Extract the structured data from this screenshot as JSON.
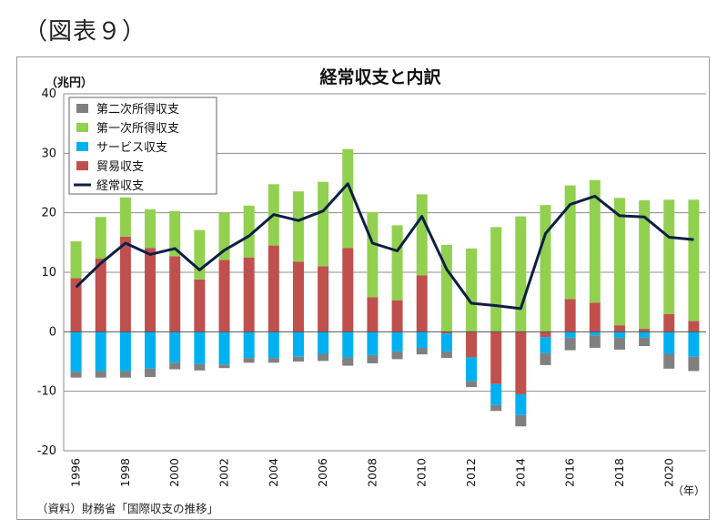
{
  "figure_label": "（図表９）",
  "source_note": "（資料）財務省「国際収支の推移」",
  "chart_data": {
    "type": "bar",
    "title": "経常収支と内訳",
    "y_unit_label": "（兆円）",
    "x_unit_label": "（年）",
    "ylim": [
      -20,
      40
    ],
    "yticks": [
      -20,
      -10,
      0,
      10,
      20,
      30,
      40
    ],
    "grid": true,
    "legend_position": "top-left",
    "categories": [
      "1996",
      "1997",
      "1998",
      "1999",
      "2000",
      "2001",
      "2002",
      "2003",
      "2004",
      "2005",
      "2006",
      "2007",
      "2008",
      "2009",
      "2010",
      "2011",
      "2012",
      "2013",
      "2014",
      "2015",
      "2016",
      "2017",
      "2018",
      "2019",
      "2020",
      "2021"
    ],
    "x_tick_labels": [
      "1996",
      "1998",
      "2000",
      "2002",
      "2004",
      "2006",
      "2008",
      "2010",
      "2012",
      "2014",
      "2016",
      "2018",
      "2020"
    ],
    "series": [
      {
        "name": "第二次所得収支",
        "kind": "bar",
        "color": "#808080",
        "values": [
          -1.0,
          -1.1,
          -1.1,
          -1.4,
          -1.1,
          -1.1,
          -0.6,
          -0.8,
          -0.8,
          -0.8,
          -1.2,
          -1.4,
          -1.4,
          -1.3,
          -1.1,
          -1.1,
          -1.0,
          -1.0,
          -1.9,
          -2.0,
          -2.1,
          -2.1,
          -2.0,
          -1.4,
          -2.5,
          -2.4
        ]
      },
      {
        "name": "第一次所得収支",
        "kind": "bar",
        "color": "#92d050",
        "values": [
          6.2,
          7.0,
          6.6,
          6.5,
          7.6,
          8.3,
          7.9,
          8.7,
          10.3,
          11.8,
          14.2,
          16.6,
          14.3,
          12.6,
          13.6,
          14.6,
          14.0,
          17.6,
          19.4,
          21.3,
          19.1,
          20.6,
          21.4,
          21.6,
          19.2,
          20.4
        ]
      },
      {
        "name": "サービス収支",
        "kind": "bar",
        "color": "#00b0f0",
        "values": [
          -6.7,
          -6.6,
          -6.6,
          -6.2,
          -5.2,
          -5.4,
          -5.5,
          -4.4,
          -4.4,
          -4.2,
          -3.7,
          -4.3,
          -3.9,
          -3.3,
          -2.7,
          -3.0,
          -4.0,
          -3.5,
          -3.5,
          -2.7,
          -1.0,
          -0.6,
          -1.0,
          -1.0,
          -3.7,
          -4.2
        ]
      },
      {
        "name": "貿易収支",
        "kind": "bar",
        "color": "#c0504d",
        "values": [
          9.0,
          12.3,
          16.0,
          14.1,
          12.7,
          8.8,
          12.1,
          12.5,
          14.5,
          11.8,
          11.0,
          14.1,
          5.8,
          5.3,
          9.5,
          -0.3,
          -4.3,
          -8.8,
          -10.5,
          -0.9,
          5.5,
          4.9,
          1.1,
          0.5,
          3.0,
          1.8
        ]
      },
      {
        "name": "経常収支",
        "kind": "line",
        "color": "#0d1f44",
        "values": [
          7.5,
          11.5,
          14.9,
          13.0,
          14.0,
          10.4,
          13.7,
          16.1,
          19.7,
          18.7,
          20.3,
          24.9,
          14.9,
          13.6,
          19.4,
          10.5,
          4.8,
          4.4,
          3.9,
          16.5,
          21.4,
          22.8,
          19.5,
          19.3,
          15.9,
          15.5
        ]
      }
    ]
  }
}
